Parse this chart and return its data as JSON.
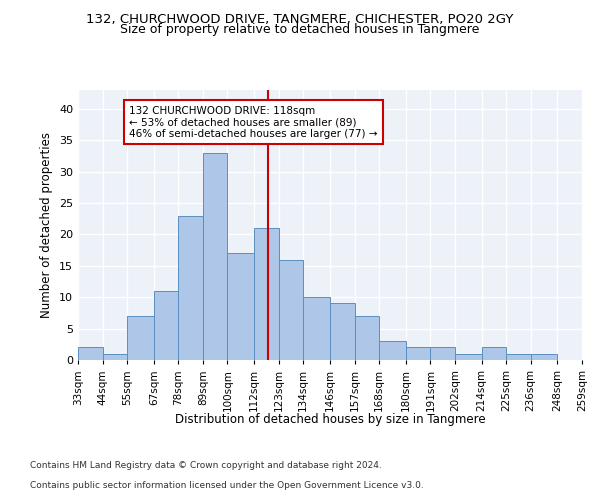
{
  "title_line1": "132, CHURCHWOOD DRIVE, TANGMERE, CHICHESTER, PO20 2GY",
  "title_line2": "Size of property relative to detached houses in Tangmere",
  "xlabel": "Distribution of detached houses by size in Tangmere",
  "ylabel": "Number of detached properties",
  "footnote1": "Contains HM Land Registry data © Crown copyright and database right 2024.",
  "footnote2": "Contains public sector information licensed under the Open Government Licence v3.0.",
  "annotation_line1": "132 CHURCHWOOD DRIVE: 118sqm",
  "annotation_line2": "← 53% of detached houses are smaller (89)",
  "annotation_line3": "46% of semi-detached houses are larger (77) →",
  "property_value": 118,
  "bin_edges": [
    33,
    44,
    55,
    67,
    78,
    89,
    100,
    112,
    123,
    134,
    146,
    157,
    168,
    180,
    191,
    202,
    214,
    225,
    236,
    248,
    259
  ],
  "bar_heights": [
    2,
    1,
    7,
    11,
    23,
    33,
    17,
    21,
    16,
    10,
    9,
    7,
    3,
    2,
    2,
    1,
    2,
    1,
    1,
    0
  ],
  "bar_color": "#aec6e8",
  "bar_edge_color": "#5a8fc0",
  "vline_color": "#cc0000",
  "vline_x": 118,
  "annotation_box_color": "#ffffff",
  "annotation_box_edge": "#cc0000",
  "background_color": "#edf2f9",
  "grid_color": "#ffffff",
  "fig_background": "#ffffff",
  "ylim": [
    0,
    43
  ],
  "yticks": [
    0,
    5,
    10,
    15,
    20,
    25,
    30,
    35,
    40
  ]
}
